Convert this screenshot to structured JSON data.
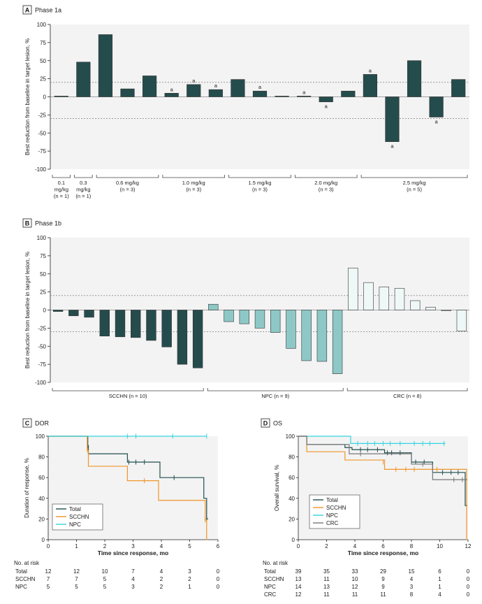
{
  "colors": {
    "dark": "#254c4c",
    "teal": "#8ec8c6",
    "pale": "#eef8f7",
    "stroke": "#333333",
    "total_line": "#1f4e4e",
    "scchn_line": "#f0952a",
    "npc_line": "#37d4e0",
    "crc_line": "#777777",
    "panel_bg": "#f3f3f3",
    "label_bg": "#e6e6e6"
  },
  "panel_a": {
    "letter": "A",
    "title": "Phase 1a",
    "y_axis_label": "Best reduction from baseline in target lesion, %",
    "y_ticks": [
      "100",
      "75",
      "50",
      "25",
      "0",
      "-25",
      "-50",
      "-75",
      "-100"
    ],
    "groups": [
      {
        "label": "0.1 mg/kg (n = 1)",
        "lines": [
          "0.1",
          "mg/kg",
          "(n = 1)"
        ]
      },
      {
        "label": "0.3 mg/kg (n = 1)",
        "lines": [
          "0.3",
          "mg/kg",
          "(n = 1)"
        ]
      },
      {
        "label": "0.6 mg/kg (n = 3)",
        "lines": [
          "0.6 mg/kg",
          "(n = 3)"
        ]
      },
      {
        "label": "1.0 mg/kg (n = 3)",
        "lines": [
          "1.0 mg/kg",
          "(n = 3)"
        ]
      },
      {
        "label": "1.5 mg/kg (n = 3)",
        "lines": [
          "1.5 mg/kg",
          "(n = 3)"
        ]
      },
      {
        "label": "2.0 mg/kg (n = 3)",
        "lines": [
          "2.0 mg/kg",
          "(n = 3)"
        ]
      },
      {
        "label": "2.5 mg/kg (n = 5)",
        "lines": [
          "2.5 mg/kg",
          "(n = 5)"
        ]
      }
    ],
    "annotation_mark": "a"
  },
  "panel_b": {
    "letter": "B",
    "title": "Phase 1b",
    "y_axis_label": "Best reduction from baseline in target lesion, %",
    "y_ticks": [
      "100",
      "75",
      "50",
      "25",
      "0",
      "-25",
      "-50",
      "-75",
      "-100"
    ],
    "groups": [
      {
        "label": "SCCHN (n = 10)"
      },
      {
        "label": "NPC (n = 9)"
      },
      {
        "label": "CRC (n = 8)"
      }
    ]
  },
  "panel_c": {
    "letter": "C",
    "title": "DOR",
    "y_axis_label": "Duration of response, %",
    "x_axis_label": "Time since response, mo",
    "y_ticks": [
      "100",
      "80",
      "60",
      "40",
      "20",
      "0"
    ],
    "x_ticks": [
      "0",
      "1",
      "2",
      "3",
      "4",
      "5",
      "6"
    ],
    "legend": [
      "Total",
      "SCCHN",
      "NPC"
    ],
    "risk_title": "No. at risk",
    "risk_rows": [
      {
        "label": "Total",
        "values": [
          "12",
          "12",
          "10",
          "7",
          "4",
          "3",
          "0"
        ]
      },
      {
        "label": "SCCHN",
        "values": [
          "7",
          "7",
          "5",
          "4",
          "2",
          "2",
          "0"
        ]
      },
      {
        "label": "NPC",
        "values": [
          "5",
          "5",
          "5",
          "3",
          "2",
          "1",
          "0"
        ]
      }
    ]
  },
  "panel_d": {
    "letter": "D",
    "title": "OS",
    "y_axis_label": "Overall survival, %",
    "x_axis_label": "Time since response, mo",
    "y_ticks": [
      "100",
      "80",
      "60",
      "40",
      "20",
      "0"
    ],
    "x_ticks": [
      "0",
      "2",
      "4",
      "6",
      "8",
      "10",
      "12"
    ],
    "legend": [
      "Total",
      "SCCHN",
      "NPC",
      "CRC"
    ],
    "risk_title": "No. at risk",
    "risk_rows": [
      {
        "label": "Total",
        "values": [
          "39",
          "35",
          "33",
          "29",
          "15",
          "6",
          "0"
        ]
      },
      {
        "label": "SCCHN",
        "values": [
          "13",
          "11",
          "10",
          "9",
          "4",
          "1",
          "0"
        ]
      },
      {
        "label": "NPC",
        "values": [
          "14",
          "13",
          "12",
          "9",
          "3",
          "1",
          "0"
        ]
      },
      {
        "label": "CRC",
        "values": [
          "12",
          "11",
          "11",
          "11",
          "8",
          "4",
          "0"
        ]
      }
    ]
  },
  "chart_data": [
    {
      "id": "A",
      "type": "bar",
      "title": "Phase 1a",
      "ylabel": "Best reduction from baseline in target lesion, %",
      "ylim": [
        -100,
        100
      ],
      "reference_lines": [
        20,
        -30
      ],
      "values": [
        1,
        48,
        86,
        11,
        29,
        5,
        17,
        10,
        24,
        8,
        1,
        1,
        -7,
        8,
        31,
        -62,
        50,
        -28,
        24
      ],
      "group_index": [
        0,
        1,
        2,
        2,
        2,
        3,
        3,
        3,
        4,
        4,
        4,
        5,
        5,
        5,
        6,
        6,
        6,
        6,
        6
      ],
      "annotated": [
        false,
        false,
        false,
        false,
        false,
        true,
        true,
        true,
        false,
        true,
        false,
        true,
        true,
        false,
        true,
        true,
        false,
        true,
        false
      ]
    },
    {
      "id": "B",
      "type": "bar",
      "title": "Phase 1b",
      "ylabel": "Best reduction from baseline in target lesion, %",
      "ylim": [
        -100,
        100
      ],
      "reference_lines": [
        20,
        -30
      ],
      "values": [
        -2,
        -8,
        -10,
        -36,
        -37,
        -38,
        -42,
        -51,
        -75,
        -80,
        8,
        -16,
        -19,
        -25,
        -31,
        -53,
        -70,
        -71,
        -88,
        58,
        38,
        32,
        30,
        13,
        4,
        -1,
        -29
      ],
      "group_index": [
        0,
        0,
        0,
        0,
        0,
        0,
        0,
        0,
        0,
        0,
        1,
        1,
        1,
        1,
        1,
        1,
        1,
        1,
        1,
        2,
        2,
        2,
        2,
        2,
        2,
        2,
        2
      ]
    },
    {
      "id": "C",
      "type": "line",
      "title": "DOR",
      "xlabel": "Time since response, mo",
      "ylabel": "Duration of response, %",
      "xlim": [
        0,
        6
      ],
      "ylim": [
        0,
        100
      ],
      "series": [
        {
          "name": "Total",
          "steps": [
            [
              0,
              100
            ],
            [
              1.4,
              91
            ],
            [
              1.42,
              83
            ],
            [
              2.8,
              75
            ],
            [
              3.95,
              60
            ],
            [
              5.5,
              40
            ],
            [
              5.6,
              20
            ],
            [
              5.65,
              20
            ]
          ],
          "censors": [
            [
              1.4,
              88
            ],
            [
              2.85,
              75
            ],
            [
              3.1,
              75
            ],
            [
              3.4,
              75
            ],
            [
              4.45,
              60
            ],
            [
              5.6,
              20
            ]
          ]
        },
        {
          "name": "SCCHN",
          "steps": [
            [
              0,
              100
            ],
            [
              1.38,
              86
            ],
            [
              1.42,
              71
            ],
            [
              2.8,
              57
            ],
            [
              3.9,
              38
            ],
            [
              5.55,
              19
            ],
            [
              5.6,
              0
            ],
            [
              5.62,
              0
            ]
          ],
          "censors": [
            [
              1.4,
              86
            ],
            [
              3.4,
              57
            ],
            [
              5.55,
              19
            ]
          ]
        },
        {
          "name": "NPC",
          "steps": [
            [
              0,
              100
            ],
            [
              5.6,
              100
            ]
          ],
          "censors": [
            [
              2.8,
              100
            ],
            [
              3.1,
              100
            ],
            [
              4.4,
              100
            ],
            [
              5.6,
              100
            ]
          ]
        }
      ]
    },
    {
      "id": "D",
      "type": "line",
      "title": "OS",
      "xlabel": "Time since response, mo",
      "ylabel": "Overall survival, %",
      "xlim": [
        0,
        12
      ],
      "ylim": [
        0,
        100
      ],
      "series": [
        {
          "name": "Total",
          "steps": [
            [
              0,
              100
            ],
            [
              0.6,
              92
            ],
            [
              3.3,
              89
            ],
            [
              3.8,
              87
            ],
            [
              6.1,
              84
            ],
            [
              8.0,
              75
            ],
            [
              9.5,
              65
            ],
            [
              11.8,
              33
            ],
            [
              11.95,
              33
            ]
          ],
          "censors": [
            [
              4.4,
              87
            ],
            [
              4.9,
              87
            ],
            [
              5.6,
              87
            ],
            [
              6.3,
              84
            ],
            [
              6.6,
              84
            ],
            [
              7.2,
              84
            ],
            [
              8.3,
              75
            ],
            [
              8.9,
              75
            ],
            [
              10.2,
              65
            ],
            [
              10.8,
              65
            ],
            [
              11.3,
              65
            ],
            [
              11.9,
              33
            ]
          ]
        },
        {
          "name": "SCCHN",
          "steps": [
            [
              0,
              100
            ],
            [
              0.6,
              85
            ],
            [
              3.3,
              77
            ],
            [
              6.1,
              68
            ],
            [
              11.9,
              0
            ],
            [
              11.95,
              0
            ]
          ],
          "censors": [
            [
              6.0,
              75
            ],
            [
              6.9,
              68
            ],
            [
              7.6,
              68
            ],
            [
              8.2,
              68
            ],
            [
              9.8,
              68
            ]
          ]
        },
        {
          "name": "NPC",
          "steps": [
            [
              0,
              100
            ],
            [
              3.7,
              93
            ],
            [
              10.4,
              93
            ]
          ],
          "censors": [
            [
              4.2,
              93
            ],
            [
              4.9,
              93
            ],
            [
              5.4,
              93
            ],
            [
              6.0,
              93
            ],
            [
              6.5,
              93
            ],
            [
              7.2,
              93
            ],
            [
              8.2,
              93
            ],
            [
              8.8,
              93
            ],
            [
              9.3,
              93
            ],
            [
              10.3,
              93
            ]
          ]
        },
        {
          "name": "CRC",
          "steps": [
            [
              0,
              100
            ],
            [
              0.6,
              92
            ],
            [
              3.6,
              83
            ],
            [
              6.2,
              83
            ],
            [
              8.0,
              73
            ],
            [
              9.5,
              58
            ],
            [
              11.8,
              58
            ],
            [
              11.95,
              58
            ]
          ],
          "censors": [
            [
              4.4,
              83
            ],
            [
              8.8,
              73
            ],
            [
              11.0,
              58
            ],
            [
              11.6,
              58
            ]
          ]
        }
      ]
    }
  ]
}
